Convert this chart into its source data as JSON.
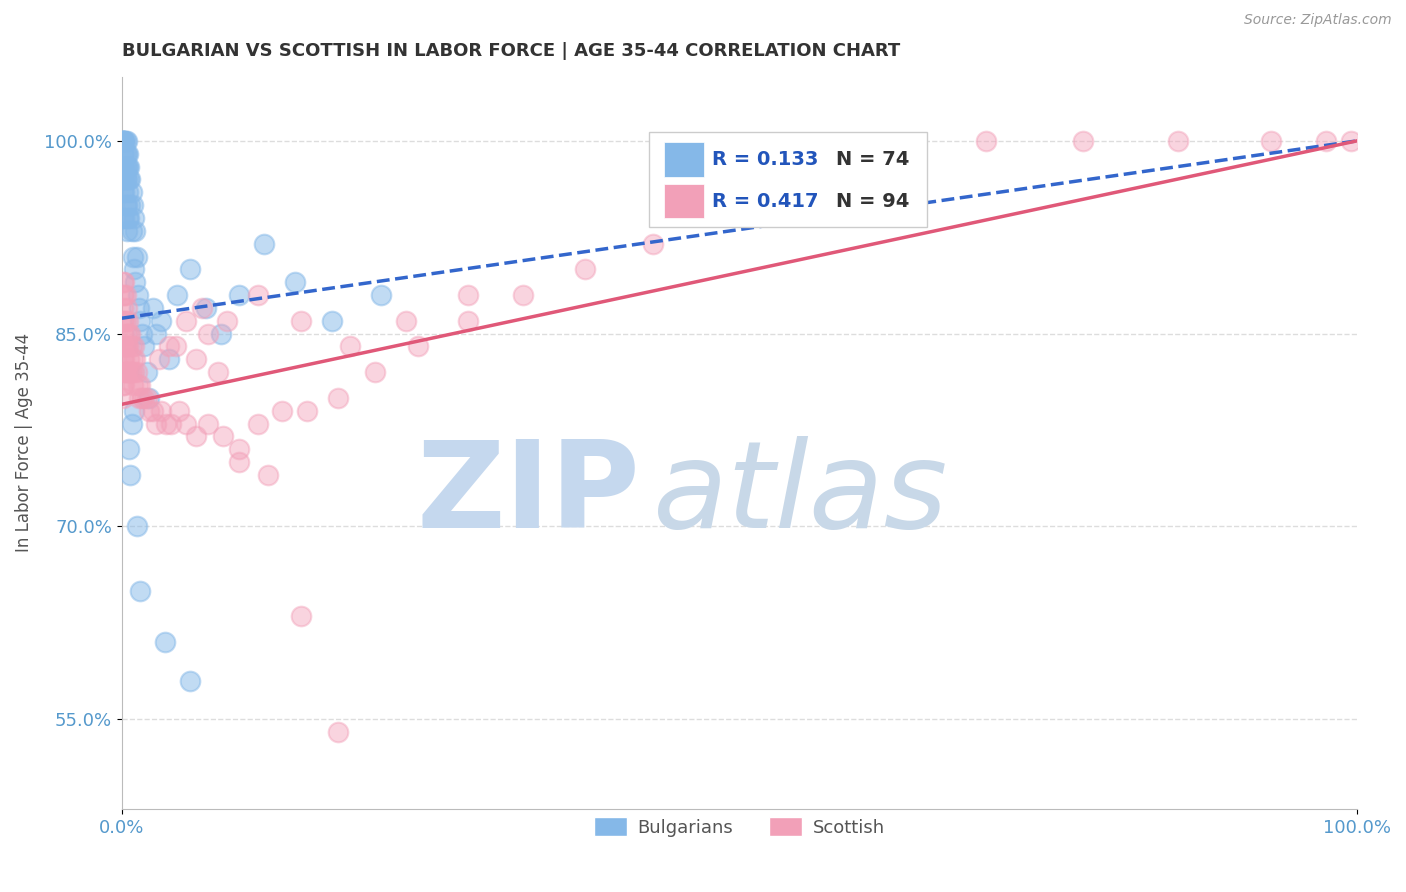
{
  "title": "BULGARIAN VS SCOTTISH IN LABOR FORCE | AGE 35-44 CORRELATION CHART",
  "source_text": "Source: ZipAtlas.com",
  "ylabel": "In Labor Force | Age 35-44",
  "xlim": [
    0.0,
    1.0
  ],
  "ylim": [
    0.48,
    1.05
  ],
  "yticks": [
    0.55,
    0.7,
    0.85,
    1.0
  ],
  "xticks": [
    0.0,
    1.0
  ],
  "legend_R_bulgarian": "R = 0.133",
  "legend_N_bulgarian": "N = 74",
  "legend_R_scottish": "R = 0.417",
  "legend_N_scottish": "N = 94",
  "bulgarian_color": "#85B8E8",
  "scottish_color": "#F2A0B8",
  "bulgarian_line_color": "#3366CC",
  "scottish_line_color": "#E05878",
  "background_color": "#FFFFFF",
  "watermark_zip_color": "#C5D8EE",
  "watermark_atlas_color": "#C8D8E8",
  "title_color": "#333333",
  "title_fontsize": 13,
  "axis_label_color": "#555555",
  "tick_label_color": "#5599CC",
  "grid_color": "#DDDDDD",
  "legend_R_color": "#2255BB",
  "legend_N_color": "#333333",
  "bg_line_intercept": 0.862,
  "bg_line_slope": 0.138,
  "sc_line_intercept": 0.795,
  "sc_line_slope": 0.205,
  "bulgarian_x": [
    0.001,
    0.001,
    0.001,
    0.001,
    0.001,
    0.001,
    0.001,
    0.001,
    0.001,
    0.001,
    0.002,
    0.002,
    0.002,
    0.002,
    0.002,
    0.002,
    0.002,
    0.003,
    0.003,
    0.003,
    0.003,
    0.003,
    0.004,
    0.004,
    0.004,
    0.004,
    0.004,
    0.004,
    0.005,
    0.005,
    0.005,
    0.005,
    0.006,
    0.006,
    0.006,
    0.007,
    0.007,
    0.008,
    0.008,
    0.009,
    0.009,
    0.01,
    0.01,
    0.011,
    0.011,
    0.012,
    0.013,
    0.014,
    0.015,
    0.016,
    0.018,
    0.02,
    0.022,
    0.025,
    0.028,
    0.032,
    0.038,
    0.045,
    0.055,
    0.068,
    0.08,
    0.095,
    0.115,
    0.14,
    0.17,
    0.21,
    0.01,
    0.008,
    0.006,
    0.007,
    0.012,
    0.015,
    0.035,
    0.055
  ],
  "bulgarian_y": [
    1.0,
    1.0,
    1.0,
    1.0,
    1.0,
    0.99,
    0.98,
    0.97,
    0.96,
    0.94,
    1.0,
    1.0,
    0.99,
    0.98,
    0.97,
    0.96,
    0.94,
    1.0,
    0.99,
    0.98,
    0.97,
    0.95,
    1.0,
    0.99,
    0.98,
    0.97,
    0.95,
    0.93,
    0.99,
    0.98,
    0.96,
    0.94,
    0.98,
    0.97,
    0.94,
    0.97,
    0.95,
    0.96,
    0.93,
    0.95,
    0.91,
    0.94,
    0.9,
    0.93,
    0.89,
    0.91,
    0.88,
    0.87,
    0.86,
    0.85,
    0.84,
    0.82,
    0.8,
    0.87,
    0.85,
    0.86,
    0.83,
    0.88,
    0.9,
    0.87,
    0.85,
    0.88,
    0.92,
    0.89,
    0.86,
    0.88,
    0.79,
    0.78,
    0.76,
    0.74,
    0.7,
    0.65,
    0.61,
    0.58
  ],
  "scottish_x": [
    0.001,
    0.001,
    0.001,
    0.001,
    0.001,
    0.001,
    0.001,
    0.001,
    0.001,
    0.001,
    0.002,
    0.002,
    0.002,
    0.002,
    0.002,
    0.002,
    0.003,
    0.003,
    0.003,
    0.003,
    0.004,
    0.004,
    0.004,
    0.004,
    0.005,
    0.005,
    0.005,
    0.006,
    0.006,
    0.007,
    0.007,
    0.008,
    0.008,
    0.009,
    0.009,
    0.01,
    0.01,
    0.011,
    0.012,
    0.013,
    0.014,
    0.015,
    0.016,
    0.018,
    0.02,
    0.022,
    0.025,
    0.028,
    0.032,
    0.036,
    0.04,
    0.046,
    0.052,
    0.06,
    0.07,
    0.082,
    0.095,
    0.11,
    0.13,
    0.15,
    0.175,
    0.205,
    0.24,
    0.28,
    0.325,
    0.375,
    0.43,
    0.49,
    0.555,
    0.625,
    0.7,
    0.778,
    0.855,
    0.93,
    0.975,
    0.995,
    0.065,
    0.085,
    0.11,
    0.145,
    0.185,
    0.23,
    0.28,
    0.038,
    0.052,
    0.07,
    0.03,
    0.044,
    0.06,
    0.078,
    0.095,
    0.118,
    0.145,
    0.175
  ],
  "scottish_y": [
    0.89,
    0.88,
    0.87,
    0.86,
    0.85,
    0.84,
    0.83,
    0.82,
    0.81,
    0.8,
    0.89,
    0.88,
    0.86,
    0.84,
    0.83,
    0.81,
    0.88,
    0.86,
    0.84,
    0.82,
    0.87,
    0.85,
    0.84,
    0.82,
    0.86,
    0.84,
    0.82,
    0.85,
    0.83,
    0.85,
    0.82,
    0.84,
    0.82,
    0.83,
    0.81,
    0.84,
    0.82,
    0.83,
    0.82,
    0.81,
    0.8,
    0.81,
    0.8,
    0.8,
    0.8,
    0.79,
    0.79,
    0.78,
    0.79,
    0.78,
    0.78,
    0.79,
    0.78,
    0.77,
    0.78,
    0.77,
    0.76,
    0.78,
    0.79,
    0.79,
    0.8,
    0.82,
    0.84,
    0.86,
    0.88,
    0.9,
    0.92,
    0.95,
    0.97,
    0.99,
    1.0,
    1.0,
    1.0,
    1.0,
    1.0,
    1.0,
    0.87,
    0.86,
    0.88,
    0.86,
    0.84,
    0.86,
    0.88,
    0.84,
    0.86,
    0.85,
    0.83,
    0.84,
    0.83,
    0.82,
    0.75,
    0.74,
    0.63,
    0.54
  ]
}
